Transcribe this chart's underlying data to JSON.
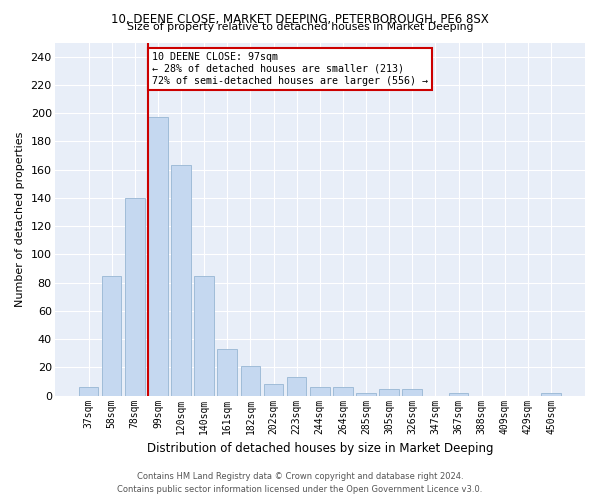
{
  "title_line1": "10, DEENE CLOSE, MARKET DEEPING, PETERBOROUGH, PE6 8SX",
  "title_line2": "Size of property relative to detached houses in Market Deeping",
  "xlabel": "Distribution of detached houses by size in Market Deeping",
  "ylabel": "Number of detached properties",
  "categories": [
    "37sqm",
    "58sqm",
    "78sqm",
    "99sqm",
    "120sqm",
    "140sqm",
    "161sqm",
    "182sqm",
    "202sqm",
    "223sqm",
    "244sqm",
    "264sqm",
    "285sqm",
    "305sqm",
    "326sqm",
    "347sqm",
    "367sqm",
    "388sqm",
    "409sqm",
    "429sqm",
    "450sqm"
  ],
  "values": [
    6,
    85,
    140,
    197,
    163,
    85,
    33,
    21,
    8,
    13,
    6,
    6,
    2,
    5,
    5,
    0,
    2,
    0,
    0,
    0,
    2
  ],
  "bar_color": "#c5d8f0",
  "bar_edgecolor": "#a0bcd8",
  "vline_x_index": 3,
  "vline_color": "#cc0000",
  "annotation_text": "10 DEENE CLOSE: 97sqm\n← 28% of detached houses are smaller (213)\n72% of semi-detached houses are larger (556) →",
  "annotation_box_facecolor": "#ffffff",
  "annotation_box_edgecolor": "#cc0000",
  "ylim": [
    0,
    250
  ],
  "yticks": [
    0,
    20,
    40,
    60,
    80,
    100,
    120,
    140,
    160,
    180,
    200,
    220,
    240
  ],
  "background_color": "#e8eef8",
  "grid_color": "#ffffff",
  "footer_line1": "Contains HM Land Registry data © Crown copyright and database right 2024.",
  "footer_line2": "Contains public sector information licensed under the Open Government Licence v3.0."
}
